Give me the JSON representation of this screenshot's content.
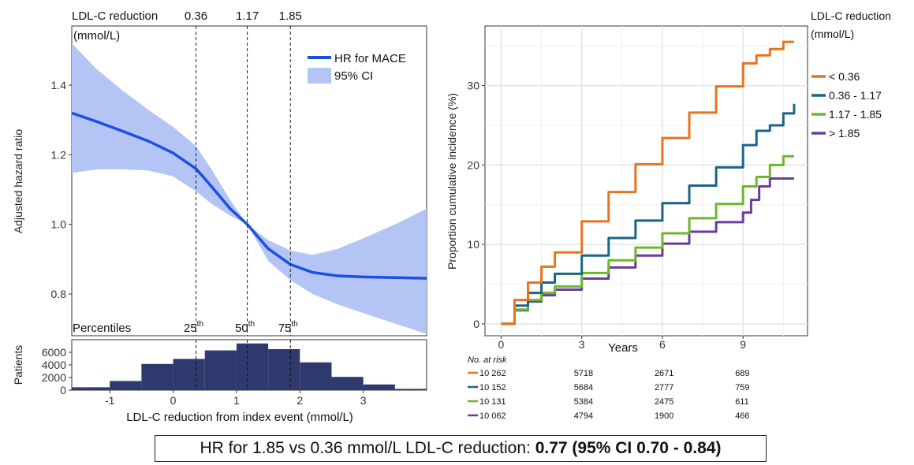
{
  "chart_data": [
    {
      "type": "line",
      "title": "",
      "xlabel": "",
      "ylabel": "Adjusted hazard ratio",
      "xlim": [
        -1.6,
        4.0
      ],
      "ylim": [
        0.68,
        1.57
      ],
      "yticks": [
        "0.8",
        "1.0",
        "1.2",
        "1.4"
      ],
      "ytick_values": [
        0.8,
        1.0,
        1.2,
        1.4
      ],
      "top_label": "LDL-C reduction",
      "top_label_unit": "(mmol/L)",
      "cutpoints": [
        {
          "value": 0.36,
          "label": "0.36",
          "percentile": "25",
          "suffix": "th"
        },
        {
          "value": 1.17,
          "label": "1.17",
          "percentile": "50",
          "suffix": "th"
        },
        {
          "value": 1.85,
          "label": "1.85",
          "percentile": "75",
          "suffix": "th"
        }
      ],
      "percentiles_label": "Percentiles",
      "legend": {
        "position": "top-right",
        "line_label": "HR for MACE",
        "band_label": "95% CI"
      },
      "colors": {
        "line": "#1f4fe0",
        "band": "#b3c4f5"
      },
      "series": [
        {
          "name": "HR for MACE",
          "x": [
            -1.6,
            -1.2,
            -0.8,
            -0.4,
            0.0,
            0.36,
            0.6,
            0.9,
            1.17,
            1.5,
            1.85,
            2.2,
            2.6,
            3.0,
            3.5,
            4.0
          ],
          "y": [
            1.32,
            1.295,
            1.268,
            1.24,
            1.205,
            1.16,
            1.11,
            1.045,
            1.0,
            0.93,
            0.885,
            0.862,
            0.852,
            0.849,
            0.847,
            0.845
          ],
          "lower": [
            1.148,
            1.158,
            1.158,
            1.155,
            1.138,
            1.095,
            1.06,
            1.025,
            1.0,
            0.895,
            0.84,
            0.8,
            0.77,
            0.745,
            0.715,
            0.685
          ],
          "upper": [
            1.52,
            1.445,
            1.385,
            1.33,
            1.28,
            1.225,
            1.16,
            1.07,
            1.0,
            0.955,
            0.925,
            0.912,
            0.93,
            0.96,
            1.0,
            1.045
          ]
        }
      ]
    },
    {
      "type": "bar",
      "title": "",
      "xlabel": "LDL-C reduction from index event (mmol/L)",
      "ylabel": "Patients",
      "xlim": [
        -1.6,
        4.0
      ],
      "ylim": [
        0,
        8000
      ],
      "xticks": [
        "-1",
        "0",
        "1",
        "2",
        "3"
      ],
      "xtick_values": [
        -1,
        0,
        1,
        2,
        3
      ],
      "yticks": [
        "0",
        "2000",
        "4000",
        "6000"
      ],
      "ytick_values": [
        0,
        2000,
        4000,
        6000
      ],
      "bar_color": "#2e3a6e",
      "bins": [
        {
          "from": -1.6,
          "to": -1.0,
          "value": 450
        },
        {
          "from": -1.0,
          "to": -0.5,
          "value": 1450
        },
        {
          "from": -0.5,
          "to": 0.0,
          "value": 4150
        },
        {
          "from": 0.0,
          "to": 0.5,
          "value": 4950
        },
        {
          "from": 0.5,
          "to": 1.0,
          "value": 6300
        },
        {
          "from": 1.0,
          "to": 1.5,
          "value": 7400
        },
        {
          "from": 1.5,
          "to": 2.0,
          "value": 6500
        },
        {
          "from": 2.0,
          "to": 2.5,
          "value": 4400
        },
        {
          "from": 2.5,
          "to": 3.0,
          "value": 2100
        },
        {
          "from": 3.0,
          "to": 3.5,
          "value": 900
        },
        {
          "from": 3.5,
          "to": 4.0,
          "value": 200
        }
      ]
    },
    {
      "type": "line",
      "title": "",
      "xlabel": "Years",
      "ylabel": "Proportion cumulative incidence (%)",
      "xlim": [
        -0.6,
        11.4
      ],
      "ylim": [
        -1.5,
        37.5
      ],
      "xticks": [
        "0",
        "3",
        "6",
        "9"
      ],
      "xtick_values": [
        0,
        3,
        6,
        9
      ],
      "yticks": [
        "0",
        "10",
        "20",
        "30"
      ],
      "ytick_values": [
        0,
        10,
        20,
        30
      ],
      "grid": true,
      "legend": {
        "position": "right",
        "title": "LDL-C reduction",
        "title_unit": "(mmol/L)"
      },
      "series": [
        {
          "name": "< 0.36",
          "color": "#e8731f",
          "x": [
            0,
            0.5,
            1,
            1.5,
            2,
            3,
            4,
            5,
            6,
            7,
            8,
            9,
            9.5,
            10,
            10.5,
            10.9
          ],
          "y": [
            0,
            3.0,
            5.2,
            7.2,
            9.0,
            12.9,
            16.6,
            20.1,
            23.4,
            26.6,
            29.9,
            32.8,
            33.8,
            34.6,
            35.5,
            35.5
          ]
        },
        {
          "name": "0.36 - 1.17",
          "color": "#1a6585",
          "x": [
            0,
            0.5,
            1,
            1.5,
            2,
            3,
            4,
            5,
            6,
            7,
            8,
            9,
            9.5,
            10,
            10.5,
            10.9
          ],
          "y": [
            0,
            2.3,
            3.9,
            5.2,
            6.3,
            8.6,
            10.8,
            13.0,
            15.2,
            17.4,
            19.7,
            22.5,
            24.3,
            25.0,
            26.5,
            27.7
          ]
        },
        {
          "name": "1.17 - 1.85",
          "color": "#6db82a",
          "x": [
            0,
            0.5,
            1,
            1.5,
            2,
            3,
            4,
            5,
            6,
            7,
            8,
            9,
            9.5,
            10,
            10.5,
            10.9
          ],
          "y": [
            0,
            1.8,
            3.0,
            3.9,
            4.7,
            6.4,
            8.0,
            9.6,
            11.4,
            13.3,
            15.1,
            17.3,
            18.5,
            20.0,
            21.1,
            21.1
          ]
        },
        {
          "name": "> 1.85",
          "color": "#6a3d9a",
          "x": [
            0,
            0.5,
            1,
            1.5,
            2,
            3,
            4,
            5,
            6,
            7,
            8,
            9,
            9.3,
            9.6,
            10,
            10.9
          ],
          "y": [
            0,
            1.7,
            2.8,
            3.6,
            4.3,
            5.7,
            7.1,
            8.6,
            10.1,
            11.6,
            12.8,
            14.0,
            15.6,
            17.3,
            18.3,
            18.3
          ]
        }
      ],
      "risk_table": {
        "title": "No. at risk",
        "rows": [
          {
            "color": "#e8731f",
            "values": [
              "10 262",
              "5718",
              "2671",
              "689"
            ]
          },
          {
            "color": "#1a6585",
            "values": [
              "10 152",
              "5684",
              "2777",
              "759"
            ]
          },
          {
            "color": "#6db82a",
            "values": [
              "10 131",
              "5384",
              "2475",
              "611"
            ]
          },
          {
            "color": "#6a3d9a",
            "values": [
              "10 062",
              "4794",
              "1900",
              "466"
            ]
          }
        ]
      }
    }
  ],
  "footer": {
    "prefix": "HR for 1.85 vs 0.36 mmol/L LDL-C reduction: ",
    "bold": "0.77 (95% CI 0.70 - 0.84)"
  }
}
